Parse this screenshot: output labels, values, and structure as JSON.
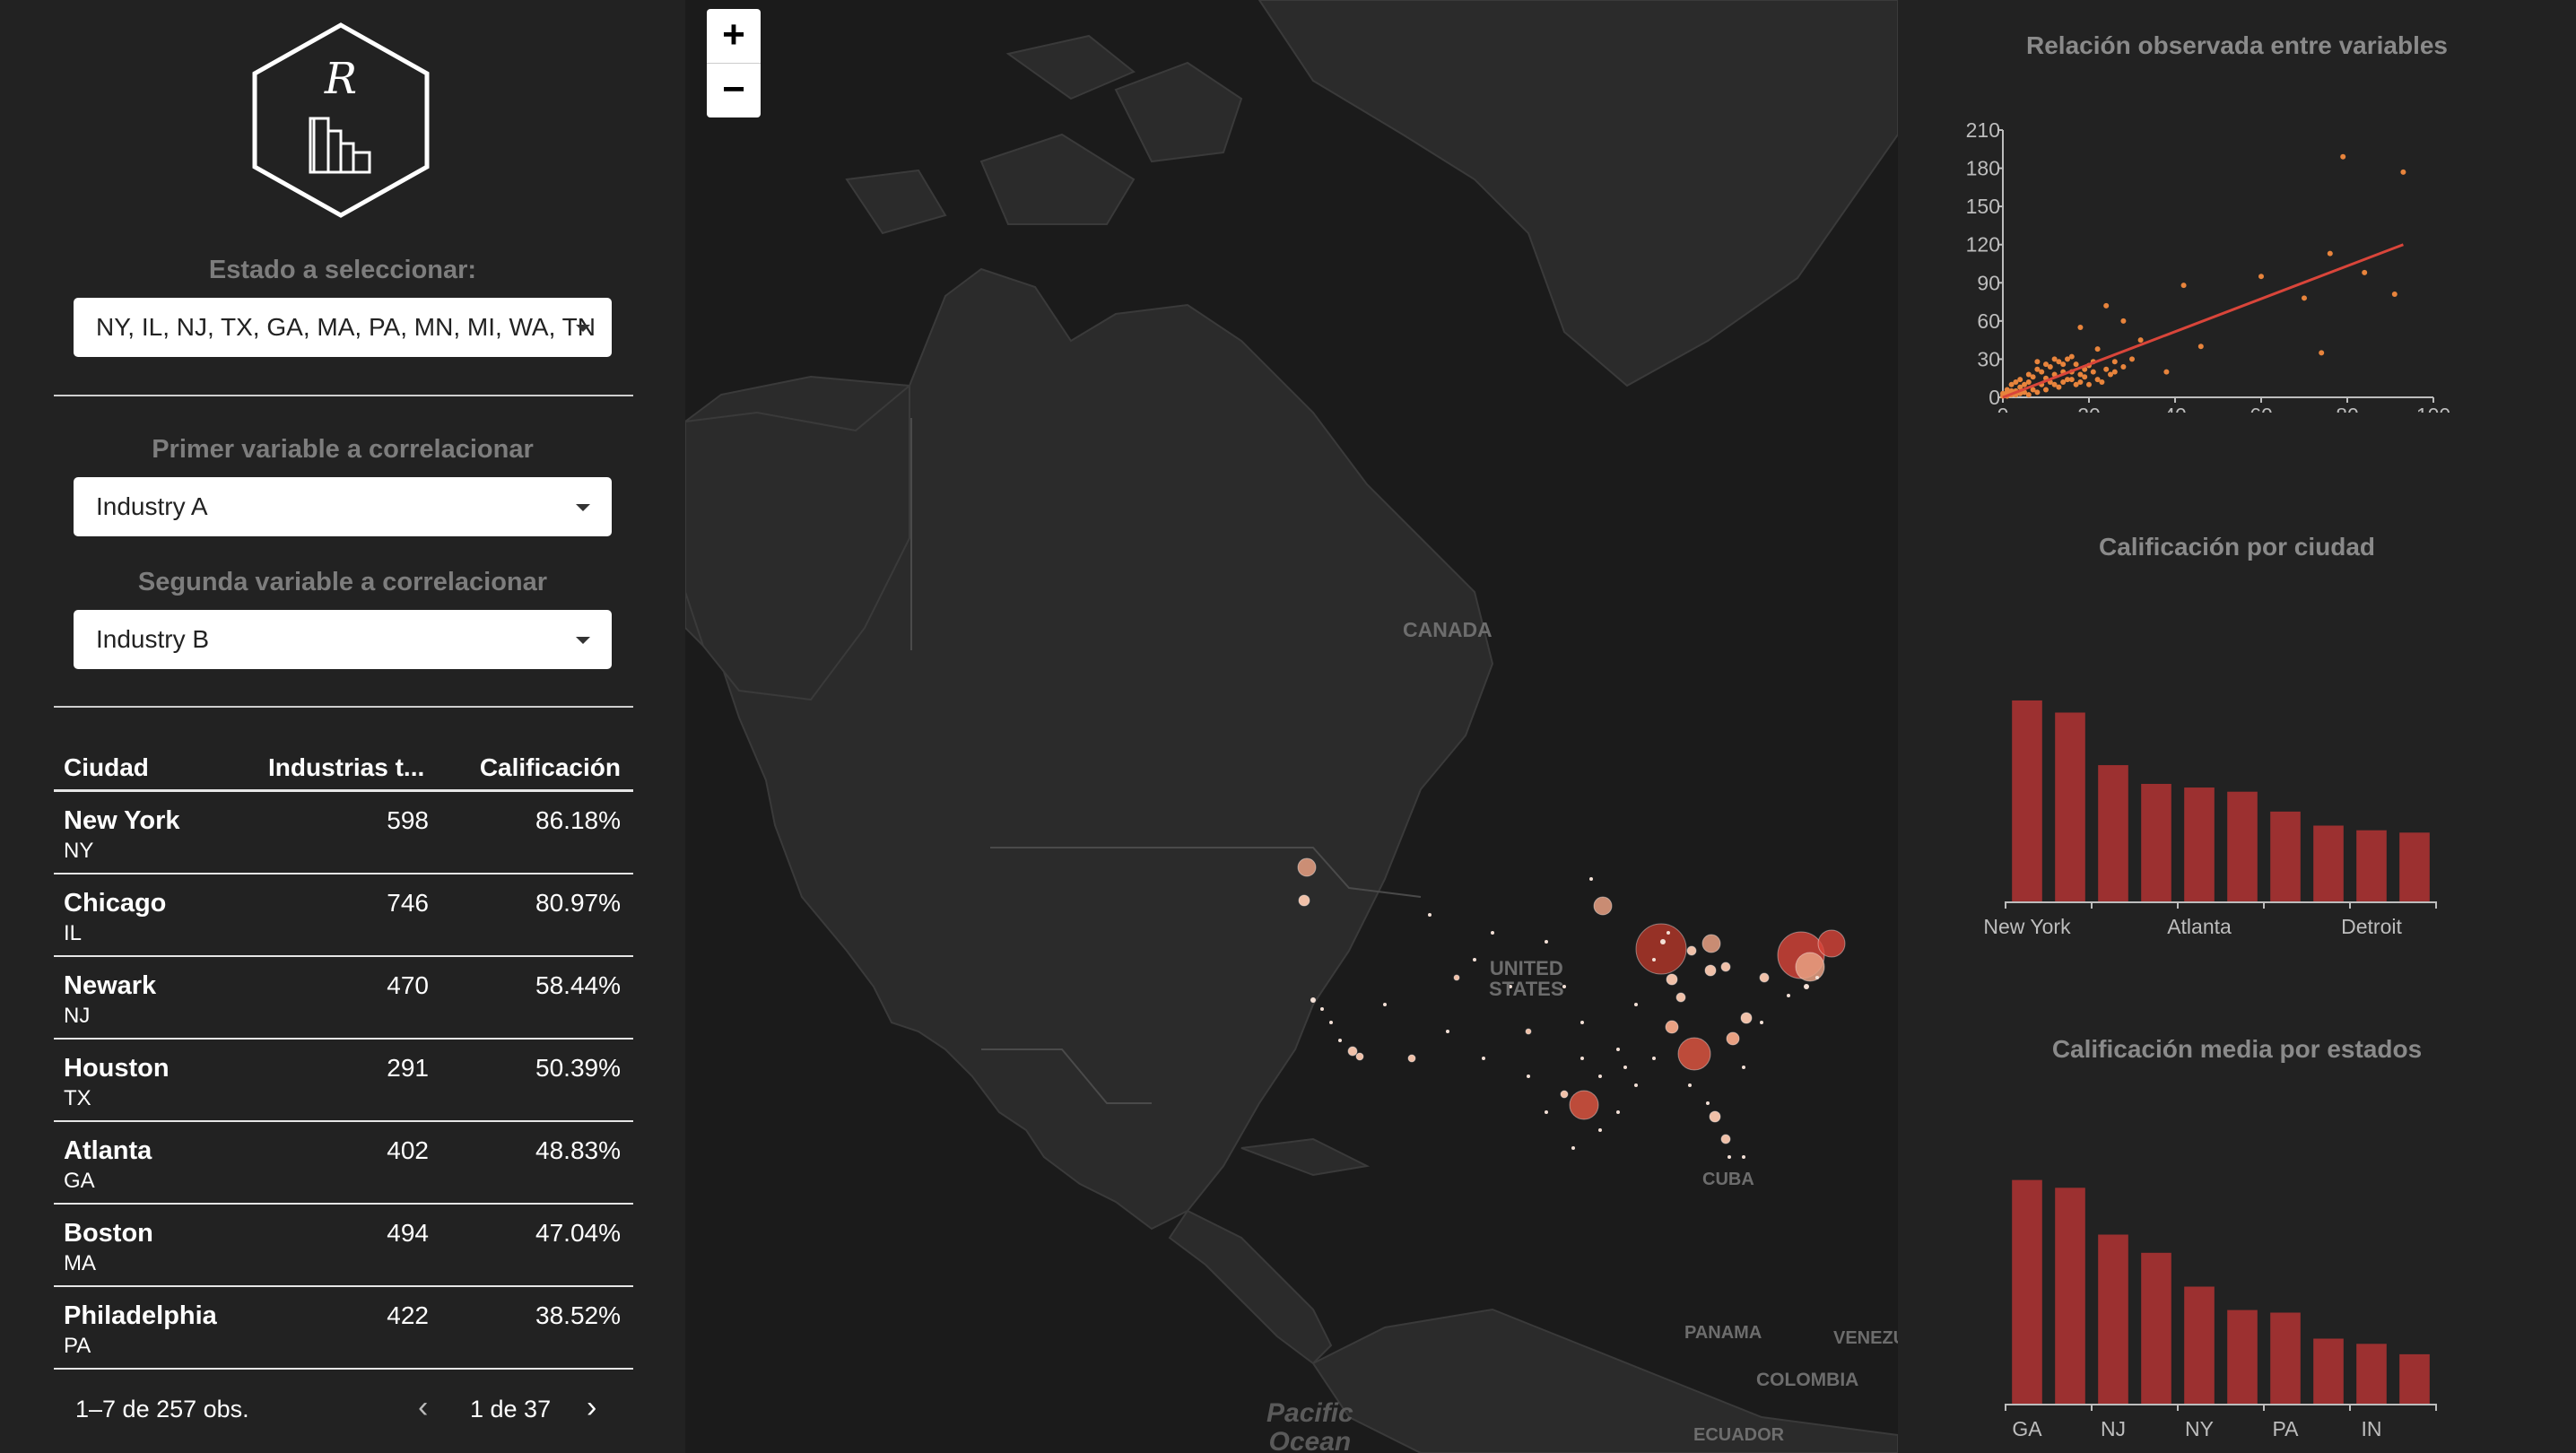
{
  "sidebar": {
    "logo_letter": "R",
    "state_label": "Estado a seleccionar:",
    "state_value": "NY, IL, NJ, TX, GA, MA, PA, MN, MI, WA, TN",
    "var1_label": "Primer variable a correlacionar",
    "var1_value": "Industry A",
    "var2_label": "Segunda variable a correlacionar",
    "var2_value": "Industry B"
  },
  "table": {
    "headers": [
      "Ciudad",
      "Industrias t...",
      "Calificación"
    ],
    "rows": [
      {
        "city": "New York",
        "state": "NY",
        "industries": "598",
        "score": "86.18%"
      },
      {
        "city": "Chicago",
        "state": "IL",
        "industries": "746",
        "score": "80.97%"
      },
      {
        "city": "Newark",
        "state": "NJ",
        "industries": "470",
        "score": "58.44%"
      },
      {
        "city": "Houston",
        "state": "TX",
        "industries": "291",
        "score": "50.39%"
      },
      {
        "city": "Atlanta",
        "state": "GA",
        "industries": "402",
        "score": "48.83%"
      },
      {
        "city": "Boston",
        "state": "MA",
        "industries": "494",
        "score": "47.04%"
      },
      {
        "city": "Philadelphia",
        "state": "PA",
        "industries": "422",
        "score": "38.52%"
      }
    ],
    "pager_info": "1–7 de 257 obs.",
    "pager_prev": "‹",
    "pager_page": "1 de 37",
    "pager_next": "›"
  },
  "map": {
    "zoom_in": "+",
    "zoom_out": "−",
    "labels": {
      "canada": "CANADA",
      "united_states": "UNITED\nSTATES",
      "cuba": "CUBA",
      "panama": "PANAMA",
      "colombia": "COLOMBIA",
      "venezuela": "VENEZU",
      "ecuador": "ECUADOR",
      "pacific": "Pacific\nOcean"
    },
    "marker_color": "#e8a082",
    "marker_color_strong": "#c0392b"
  },
  "chart_data": [
    {
      "type": "scatter",
      "title": "Relación observada entre variables",
      "xlim": [
        0,
        100
      ],
      "ylim": [
        0,
        210
      ],
      "x_ticks": [
        0,
        20,
        40,
        60,
        80,
        100
      ],
      "y_ticks": [
        0,
        30,
        60,
        90,
        120,
        150,
        180,
        210
      ],
      "point_color": "#e8843c",
      "trend_color": "#d9453a",
      "trend_line": [
        [
          0,
          0
        ],
        [
          93,
          120
        ]
      ],
      "points": [
        [
          79,
          189
        ],
        [
          93,
          177
        ],
        [
          76,
          113
        ],
        [
          84,
          98
        ],
        [
          91,
          81
        ],
        [
          60,
          95
        ],
        [
          70,
          78
        ],
        [
          74,
          35
        ],
        [
          42,
          88
        ],
        [
          24,
          72
        ],
        [
          28,
          60
        ],
        [
          18,
          55
        ],
        [
          32,
          45
        ],
        [
          30,
          30
        ],
        [
          46,
          40
        ],
        [
          38,
          20
        ],
        [
          22,
          38
        ],
        [
          26,
          28
        ],
        [
          20,
          25
        ],
        [
          16,
          32
        ],
        [
          12,
          30
        ],
        [
          14,
          20
        ],
        [
          18,
          18
        ],
        [
          8,
          22
        ],
        [
          10,
          15
        ],
        [
          6,
          12
        ],
        [
          4,
          8
        ],
        [
          3,
          5
        ],
        [
          2,
          3
        ],
        [
          1,
          2
        ],
        [
          5,
          4
        ],
        [
          7,
          6
        ],
        [
          9,
          10
        ],
        [
          11,
          12
        ],
        [
          13,
          8
        ],
        [
          15,
          14
        ],
        [
          17,
          10
        ],
        [
          19,
          16
        ],
        [
          21,
          20
        ],
        [
          23,
          12
        ],
        [
          25,
          18
        ],
        [
          6,
          18
        ],
        [
          8,
          28
        ],
        [
          10,
          26
        ],
        [
          12,
          18
        ],
        [
          14,
          26
        ],
        [
          16,
          20
        ],
        [
          4,
          14
        ],
        [
          2,
          10
        ],
        [
          1,
          6
        ],
        [
          3,
          12
        ],
        [
          5,
          10
        ],
        [
          7,
          16
        ],
        [
          9,
          20
        ],
        [
          11,
          24
        ],
        [
          13,
          28
        ],
        [
          15,
          30
        ],
        [
          17,
          26
        ],
        [
          19,
          22
        ],
        [
          21,
          28
        ],
        [
          0,
          1
        ],
        [
          1,
          1
        ],
        [
          2,
          2
        ],
        [
          3,
          2
        ],
        [
          4,
          3
        ],
        [
          0,
          3
        ],
        [
          1,
          4
        ],
        [
          2,
          5
        ],
        [
          6,
          2
        ],
        [
          8,
          4
        ],
        [
          10,
          6
        ],
        [
          12,
          10
        ],
        [
          14,
          12
        ],
        [
          16,
          14
        ],
        [
          18,
          12
        ],
        [
          20,
          10
        ],
        [
          22,
          14
        ],
        [
          24,
          22
        ],
        [
          26,
          20
        ],
        [
          28,
          24
        ]
      ]
    },
    {
      "type": "bar",
      "title": "Calificación por ciudad",
      "bar_color": "#9c3030",
      "categories": [
        "New York",
        "Chicago",
        "Newark",
        "Houston",
        "Atlanta",
        "Boston",
        "Philadelphia",
        "",
        "Detroit",
        ""
      ],
      "tick_labels": [
        "New York",
        "Atlanta",
        "Detroit"
      ],
      "values": [
        86.18,
        80.97,
        58.44,
        50.39,
        48.83,
        47.04,
        38.52,
        32.5,
        30.5,
        29.5
      ],
      "ylim": [
        0,
        100
      ]
    },
    {
      "type": "bar",
      "title": "Calificación media por estados",
      "bar_color": "#9c3030",
      "categories": [
        "GA",
        "",
        "NJ",
        "",
        "NY",
        "",
        "PA",
        "",
        "IN",
        ""
      ],
      "tick_labels": [
        "GA",
        "NJ",
        "NY",
        "PA",
        "IN"
      ],
      "values": [
        86,
        83,
        65,
        58,
        45,
        36,
        35,
        25,
        23,
        19
      ],
      "ylim": [
        0,
        100
      ]
    }
  ]
}
